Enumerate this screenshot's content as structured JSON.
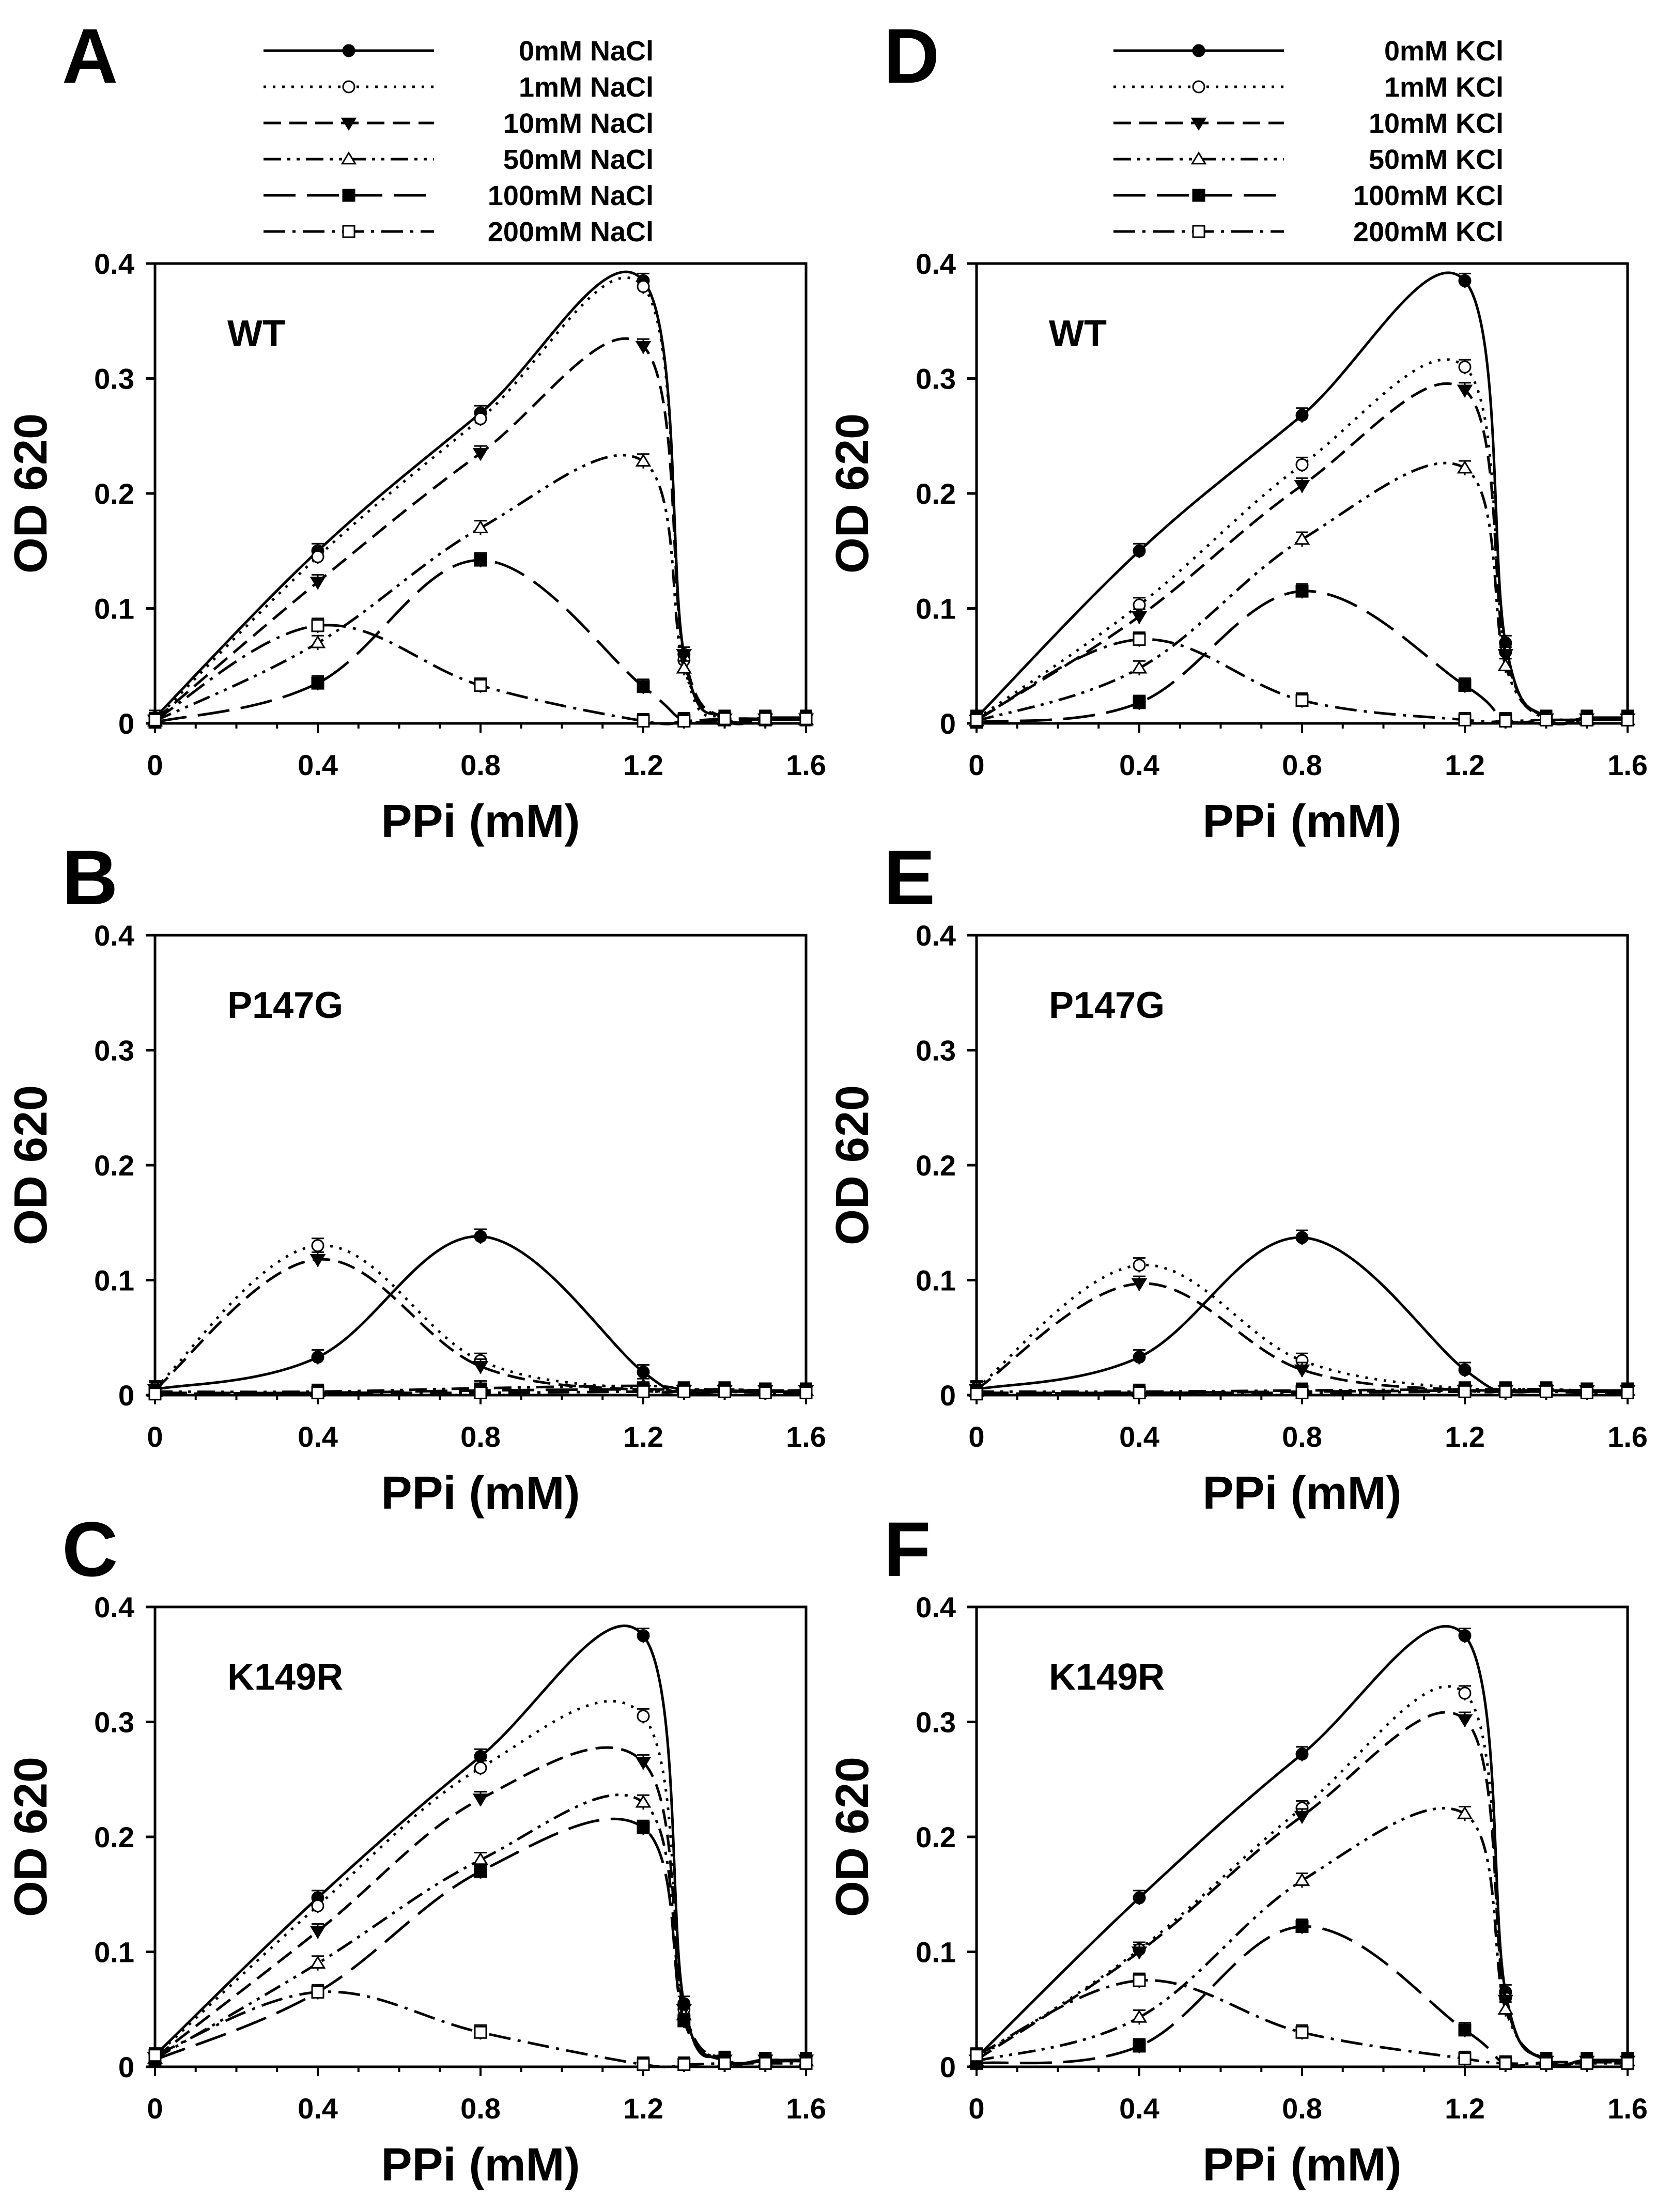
{
  "styles": {
    "line_color": "#000000",
    "background": "#ffffff"
  },
  "legends": {
    "left": [
      "0mM NaCl",
      "1mM NaCl",
      "10mM NaCl",
      "50mM NaCl",
      "100mM NaCl",
      "200mM NaCl"
    ],
    "right": [
      "0mM KCl",
      "1mM KCl",
      "10mM KCl",
      "50mM KCl",
      "100mM KCl",
      "200mM KCl"
    ]
  },
  "series_styles": [
    {
      "dash": "solid",
      "marker": "filled-circle"
    },
    {
      "dash": "dotted",
      "marker": "open-circle"
    },
    {
      "dash": "dashed",
      "marker": "filled-triangle-down"
    },
    {
      "dash": "dash-dot-dot",
      "marker": "open-triangle-up"
    },
    {
      "dash": "long-dash",
      "marker": "filled-square"
    },
    {
      "dash": "dash-dot",
      "marker": "open-square"
    }
  ],
  "chart_data": [
    {
      "panel": "A",
      "type": "line",
      "label": "WT",
      "xlabel": "PPi (mM)",
      "ylabel": "OD 620",
      "xlim": [
        0,
        1.6
      ],
      "ylim": [
        0,
        0.4
      ],
      "xticks": [
        "0",
        "0.4",
        "0.8",
        "1.2",
        "1.6"
      ],
      "yticks": [
        "0",
        "0.1",
        "0.2",
        "0.3",
        "0.4"
      ],
      "legend_ref": "left",
      "x": [
        0,
        0.4,
        0.8,
        1.2,
        1.3,
        1.4,
        1.5,
        1.6
      ],
      "series": [
        {
          "name": "0mM NaCl",
          "values": [
            0.005,
            0.15,
            0.27,
            0.385,
            0.06,
            0.005,
            0.005,
            0.005
          ]
        },
        {
          "name": "1mM NaCl",
          "values": [
            0.003,
            0.145,
            0.265,
            0.38,
            0.055,
            0.004,
            0.004,
            0.004
          ]
        },
        {
          "name": "10mM NaCl",
          "values": [
            0.003,
            0.123,
            0.235,
            0.328,
            0.06,
            0.004,
            0.004,
            0.004
          ]
        },
        {
          "name": "50mM NaCl",
          "values": [
            0.002,
            0.07,
            0.17,
            0.228,
            0.048,
            0.003,
            0.003,
            0.003
          ]
        },
        {
          "name": "100mM NaCl",
          "values": [
            0.001,
            0.035,
            0.142,
            0.032,
            0.003,
            0.003,
            0.003,
            0.003
          ]
        },
        {
          "name": "200mM NaCl",
          "values": [
            0.003,
            0.085,
            0.033,
            0.002,
            0.002,
            0.004,
            0.004,
            0.004
          ]
        }
      ]
    },
    {
      "panel": "B",
      "type": "line",
      "label": "P147G",
      "xlabel": "PPi (mM)",
      "ylabel": "OD 620",
      "xlim": [
        0,
        1.6
      ],
      "ylim": [
        0,
        0.4
      ],
      "xticks": [
        "0",
        "0.4",
        "0.8",
        "1.2",
        "1.6"
      ],
      "yticks": [
        "0",
        "0.1",
        "0.2",
        "0.3",
        "0.4"
      ],
      "legend_ref": "left",
      "x": [
        0,
        0.4,
        0.8,
        1.2,
        1.3,
        1.4,
        1.5,
        1.6
      ],
      "series": [
        {
          "name": "0mM NaCl",
          "values": [
            0.005,
            0.033,
            0.138,
            0.02,
            0.003,
            0.003,
            0.003,
            0.003
          ]
        },
        {
          "name": "1mM NaCl",
          "values": [
            0.006,
            0.13,
            0.03,
            0.005,
            0.005,
            0.005,
            0.004,
            0.004
          ]
        },
        {
          "name": "10mM NaCl",
          "values": [
            0.005,
            0.118,
            0.025,
            0.004,
            0.004,
            0.004,
            0.004,
            0.004
          ]
        },
        {
          "name": "50mM NaCl",
          "values": [
            0.003,
            0.003,
            0.006,
            0.008,
            0.005,
            0.005,
            0.004,
            0.004
          ]
        },
        {
          "name": "100mM NaCl",
          "values": [
            0.002,
            0.002,
            0.004,
            0.005,
            0.004,
            0.004,
            0.003,
            0.003
          ]
        },
        {
          "name": "200mM NaCl",
          "values": [
            0.001,
            0.002,
            0.002,
            0.003,
            0.003,
            0.003,
            0.002,
            0.002
          ]
        }
      ]
    },
    {
      "panel": "C",
      "type": "line",
      "label": "K149R",
      "xlabel": "PPi (mM)",
      "ylabel": "OD 620",
      "xlim": [
        0,
        1.6
      ],
      "ylim": [
        0,
        0.4
      ],
      "xticks": [
        "0",
        "0.4",
        "0.8",
        "1.2",
        "1.6"
      ],
      "yticks": [
        "0",
        "0.1",
        "0.2",
        "0.3",
        "0.4"
      ],
      "legend_ref": "left",
      "x": [
        0,
        0.4,
        0.8,
        1.2,
        1.3,
        1.4,
        1.5,
        1.6
      ],
      "series": [
        {
          "name": "0mM NaCl",
          "values": [
            0.01,
            0.147,
            0.27,
            0.375,
            0.055,
            0.007,
            0.006,
            0.006
          ]
        },
        {
          "name": "1mM NaCl",
          "values": [
            0.009,
            0.14,
            0.26,
            0.305,
            0.05,
            0.006,
            0.006,
            0.006
          ]
        },
        {
          "name": "10mM NaCl",
          "values": [
            0.008,
            0.118,
            0.233,
            0.265,
            0.05,
            0.006,
            0.006,
            0.006
          ]
        },
        {
          "name": "50mM NaCl",
          "values": [
            0.007,
            0.09,
            0.18,
            0.23,
            0.045,
            0.005,
            0.005,
            0.005
          ]
        },
        {
          "name": "100mM NaCl",
          "values": [
            0.006,
            0.065,
            0.17,
            0.208,
            0.04,
            0.005,
            0.005,
            0.005
          ]
        },
        {
          "name": "200mM NaCl",
          "values": [
            0.01,
            0.065,
            0.03,
            0.002,
            0.002,
            0.003,
            0.003,
            0.003
          ]
        }
      ]
    },
    {
      "panel": "D",
      "type": "line",
      "label": "WT",
      "xlabel": "PPi (mM)",
      "ylabel": "OD 620",
      "xlim": [
        0,
        1.6
      ],
      "ylim": [
        0,
        0.4
      ],
      "xticks": [
        "0",
        "0.4",
        "0.8",
        "1.2",
        "1.6"
      ],
      "yticks": [
        "0",
        "0.1",
        "0.2",
        "0.3",
        "0.4"
      ],
      "legend_ref": "right",
      "x": [
        0,
        0.4,
        0.8,
        1.2,
        1.3,
        1.4,
        1.5,
        1.6
      ],
      "series": [
        {
          "name": "0mM KCl",
          "values": [
            0.005,
            0.15,
            0.268,
            0.385,
            0.07,
            0.005,
            0.005,
            0.005
          ]
        },
        {
          "name": "1mM KCl",
          "values": [
            0.004,
            0.103,
            0.225,
            0.31,
            0.062,
            0.004,
            0.004,
            0.004
          ]
        },
        {
          "name": "10mM KCl",
          "values": [
            0.003,
            0.093,
            0.207,
            0.29,
            0.06,
            0.004,
            0.004,
            0.004
          ]
        },
        {
          "name": "50mM KCl",
          "values": [
            0.002,
            0.048,
            0.16,
            0.222,
            0.05,
            0.003,
            0.003,
            0.003
          ]
        },
        {
          "name": "100mM KCl",
          "values": [
            0.001,
            0.018,
            0.115,
            0.033,
            0.003,
            0.003,
            0.003,
            0.003
          ]
        },
        {
          "name": "200mM KCl",
          "values": [
            0.003,
            0.073,
            0.02,
            0.003,
            0.002,
            0.003,
            0.003,
            0.003
          ]
        }
      ]
    },
    {
      "panel": "E",
      "type": "line",
      "label": "P147G",
      "xlabel": "PPi (mM)",
      "ylabel": "OD 620",
      "xlim": [
        0,
        1.6
      ],
      "ylim": [
        0,
        0.4
      ],
      "xticks": [
        "0",
        "0.4",
        "0.8",
        "1.2",
        "1.6"
      ],
      "yticks": [
        "0",
        "0.1",
        "0.2",
        "0.3",
        "0.4"
      ],
      "legend_ref": "right",
      "x": [
        0,
        0.4,
        0.8,
        1.2,
        1.3,
        1.4,
        1.5,
        1.6
      ],
      "series": [
        {
          "name": "0mM KCl",
          "values": [
            0.005,
            0.033,
            0.137,
            0.022,
            0.004,
            0.004,
            0.004,
            0.004
          ]
        },
        {
          "name": "1mM KCl",
          "values": [
            0.006,
            0.113,
            0.03,
            0.005,
            0.005,
            0.005,
            0.004,
            0.004
          ]
        },
        {
          "name": "10mM KCl",
          "values": [
            0.005,
            0.097,
            0.022,
            0.004,
            0.004,
            0.004,
            0.004,
            0.004
          ]
        },
        {
          "name": "50mM KCl",
          "values": [
            0.003,
            0.003,
            0.004,
            0.005,
            0.005,
            0.005,
            0.004,
            0.004
          ]
        },
        {
          "name": "100mM KCl",
          "values": [
            0.002,
            0.002,
            0.003,
            0.004,
            0.004,
            0.004,
            0.003,
            0.003
          ]
        },
        {
          "name": "200mM KCl",
          "values": [
            0.001,
            0.002,
            0.002,
            0.003,
            0.003,
            0.003,
            0.002,
            0.002
          ]
        }
      ]
    },
    {
      "panel": "F",
      "type": "line",
      "label": "K149R",
      "xlabel": "PPi (mM)",
      "ylabel": "OD 620",
      "xlim": [
        0,
        1.6
      ],
      "ylim": [
        0,
        0.4
      ],
      "xticks": [
        "0",
        "0.4",
        "0.8",
        "1.2",
        "1.6"
      ],
      "yticks": [
        "0",
        "0.1",
        "0.2",
        "0.3",
        "0.4"
      ],
      "legend_ref": "right",
      "x": [
        0,
        0.4,
        0.8,
        1.2,
        1.3,
        1.4,
        1.5,
        1.6
      ],
      "series": [
        {
          "name": "0mM KCl",
          "values": [
            0.008,
            0.147,
            0.272,
            0.375,
            0.065,
            0.006,
            0.006,
            0.006
          ]
        },
        {
          "name": "1mM KCl",
          "values": [
            0.007,
            0.102,
            0.225,
            0.325,
            0.06,
            0.006,
            0.006,
            0.006
          ]
        },
        {
          "name": "10mM KCl",
          "values": [
            0.006,
            0.1,
            0.218,
            0.302,
            0.058,
            0.005,
            0.005,
            0.005
          ]
        },
        {
          "name": "50mM KCl",
          "values": [
            0.005,
            0.043,
            0.162,
            0.22,
            0.05,
            0.005,
            0.005,
            0.005
          ]
        },
        {
          "name": "100mM KCl",
          "values": [
            0.003,
            0.018,
            0.122,
            0.032,
            0.003,
            0.004,
            0.004,
            0.004
          ]
        },
        {
          "name": "200mM KCl",
          "values": [
            0.01,
            0.075,
            0.03,
            0.007,
            0.003,
            0.003,
            0.003,
            0.003
          ]
        }
      ]
    }
  ]
}
